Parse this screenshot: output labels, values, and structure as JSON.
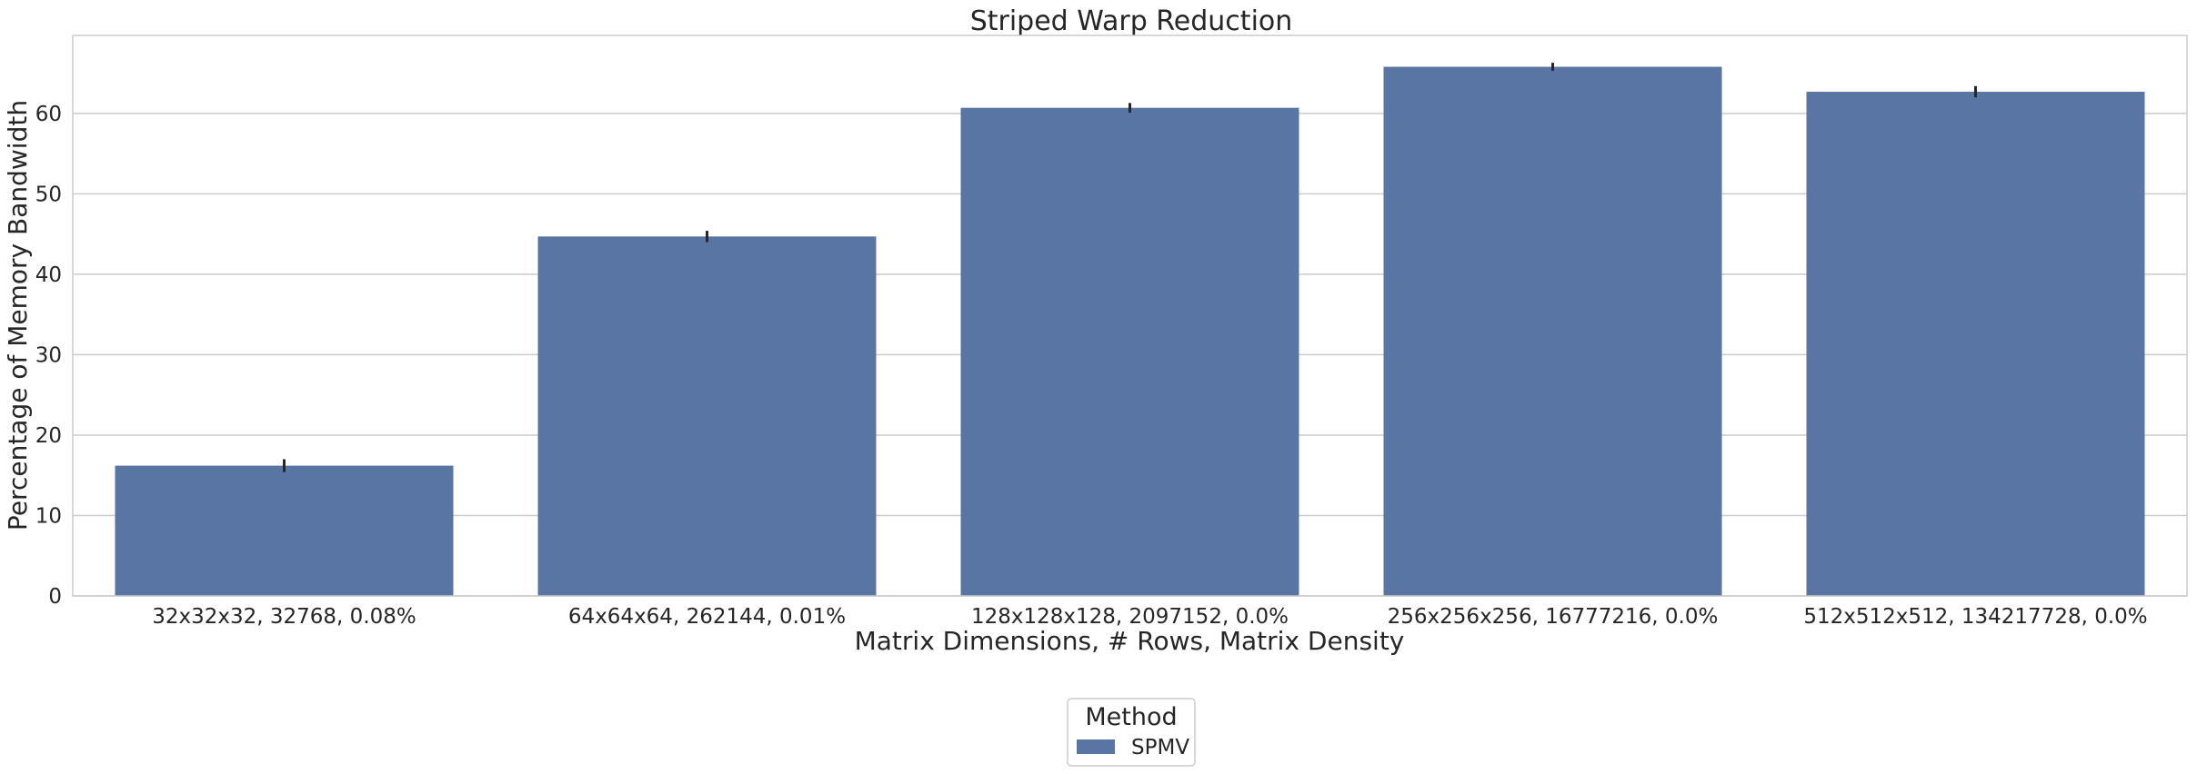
{
  "chart_data": {
    "type": "bar",
    "title": "Striped Warp Reduction",
    "xlabel": "Matrix Dimensions, # Rows, Matrix Density",
    "ylabel": "Percentage of Memory Bandwidth",
    "categories": [
      "32x32x32, 32768, 0.08%",
      "64x64x64, 262144, 0.01%",
      "128x128x128, 2097152, 0.0%",
      "256x256x256, 16777216, 0.0%",
      "512x512x512, 134217728, 0.0%"
    ],
    "series": [
      {
        "name": "SPMV",
        "values": [
          16.2,
          44.7,
          60.7,
          65.8,
          62.7
        ],
        "error": [
          0.8,
          0.7,
          0.6,
          0.5,
          0.7
        ]
      }
    ],
    "ylim": [
      0,
      69.7
    ],
    "yticks": [
      0,
      10,
      20,
      30,
      40,
      50,
      60
    ],
    "grid": true,
    "legend": {
      "title": "Method",
      "placement": "bottom-center"
    },
    "colors": {
      "bar": "#5975a4",
      "grid": "#cccccc",
      "axis": "#cccccc",
      "errorbar": "#262626"
    }
  }
}
